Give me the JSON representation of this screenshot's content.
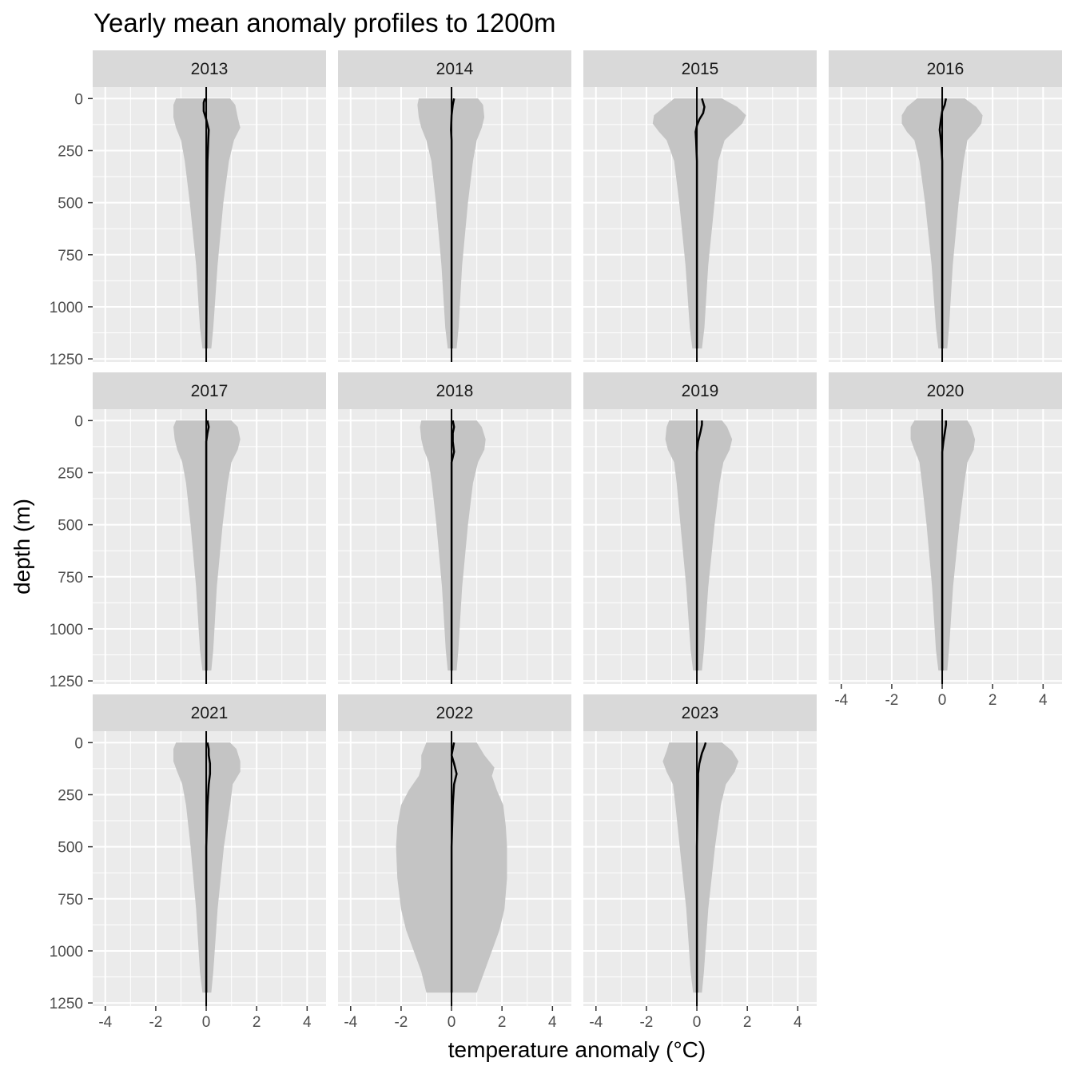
{
  "chart_data": {
    "type": "area",
    "title": "Yearly mean anomaly profiles to 1200m",
    "xlabel": "temperature anomaly (°C)",
    "ylabel": "depth (m)",
    "xlim": [
      -4.5,
      4.75
    ],
    "ylim": [
      1265,
      -55
    ],
    "x_ticks": [
      -4,
      -2,
      0,
      2,
      4
    ],
    "y_ticks": [
      0,
      250,
      500,
      750,
      1000,
      1250
    ],
    "y_reversed": true,
    "grid": true,
    "facet_layout": "4 columns, 3 rows; x-axis labels under the bottom panel of each column",
    "reference_line_x": 0,
    "colors": {
      "panel_background": "#ebebeb",
      "grid": "#ffffff",
      "strip_background": "#d9d9d9",
      "envelope_fill": "#c4c4c4",
      "mean_line": "#000000"
    },
    "facets": [
      {
        "label": "2013",
        "envelope": {
          "depth": [
            0,
            30,
            90,
            140,
            200,
            300,
            500,
            800,
            1100,
            1200
          ],
          "low": [
            -1.2,
            -1.3,
            -1.3,
            -1.2,
            -1.0,
            -0.85,
            -0.65,
            -0.4,
            -0.25,
            -0.15
          ],
          "high": [
            0.95,
            1.15,
            1.25,
            1.35,
            1.1,
            0.9,
            0.68,
            0.45,
            0.28,
            0.2
          ]
        },
        "mean": {
          "depth": [
            0,
            20,
            60,
            100,
            150,
            200,
            300,
            500,
            800,
            1200
          ],
          "value": [
            -0.05,
            -0.1,
            -0.1,
            0.0,
            0.1,
            0.08,
            0.05,
            0.03,
            0.02,
            0.0
          ]
        }
      },
      {
        "label": "2014",
        "envelope": {
          "depth": [
            0,
            30,
            90,
            140,
            200,
            300,
            500,
            800,
            1100,
            1200
          ],
          "low": [
            -1.3,
            -1.35,
            -1.3,
            -1.2,
            -1.0,
            -0.8,
            -0.62,
            -0.4,
            -0.25,
            -0.15
          ],
          "high": [
            1.05,
            1.25,
            1.3,
            1.2,
            1.0,
            0.85,
            0.65,
            0.42,
            0.28,
            0.2
          ]
        },
        "mean": {
          "depth": [
            0,
            30,
            80,
            150,
            200,
            300,
            500,
            800,
            1200
          ],
          "value": [
            0.1,
            0.05,
            0.0,
            -0.02,
            0.0,
            0.0,
            0.0,
            0.0,
            0.0
          ]
        }
      },
      {
        "label": "2015",
        "envelope": {
          "depth": [
            0,
            40,
            80,
            120,
            160,
            200,
            300,
            500,
            800,
            1100,
            1200
          ],
          "low": [
            -0.9,
            -1.3,
            -1.7,
            -1.75,
            -1.5,
            -1.2,
            -0.9,
            -0.7,
            -0.45,
            -0.28,
            -0.18
          ],
          "high": [
            1.0,
            1.6,
            1.95,
            1.8,
            1.45,
            1.1,
            0.85,
            0.7,
            0.45,
            0.3,
            0.2
          ]
        },
        "mean": {
          "depth": [
            0,
            20,
            40,
            70,
            100,
            130,
            160,
            200,
            300,
            500,
            800,
            1200
          ],
          "value": [
            0.2,
            0.25,
            0.3,
            0.25,
            0.1,
            0.0,
            -0.05,
            -0.03,
            0.0,
            0.0,
            0.0,
            0.0
          ]
        }
      },
      {
        "label": "2016",
        "envelope": {
          "depth": [
            0,
            40,
            80,
            120,
            160,
            200,
            300,
            500,
            800,
            1100,
            1200
          ],
          "low": [
            -1.0,
            -1.4,
            -1.6,
            -1.6,
            -1.4,
            -1.1,
            -0.9,
            -0.68,
            -0.42,
            -0.25,
            -0.15
          ],
          "high": [
            0.9,
            1.35,
            1.6,
            1.55,
            1.3,
            1.0,
            0.85,
            0.65,
            0.42,
            0.27,
            0.2
          ]
        },
        "mean": {
          "depth": [
            0,
            30,
            60,
            100,
            150,
            200,
            300,
            500,
            800,
            1200
          ],
          "value": [
            0.15,
            0.1,
            0.0,
            -0.05,
            -0.1,
            -0.05,
            0.0,
            0.0,
            0.0,
            0.0
          ]
        }
      },
      {
        "label": "2017",
        "envelope": {
          "depth": [
            0,
            30,
            90,
            140,
            200,
            300,
            500,
            800,
            1100,
            1200
          ],
          "low": [
            -1.2,
            -1.3,
            -1.25,
            -1.15,
            -0.95,
            -0.8,
            -0.62,
            -0.4,
            -0.25,
            -0.15
          ],
          "high": [
            1.0,
            1.25,
            1.35,
            1.25,
            1.0,
            0.85,
            0.65,
            0.42,
            0.28,
            0.2
          ]
        },
        "mean": {
          "depth": [
            0,
            30,
            60,
            100,
            150,
            200,
            300,
            500,
            800,
            1200
          ],
          "value": [
            0.05,
            0.1,
            0.05,
            0.0,
            0.0,
            0.0,
            0.0,
            0.0,
            0.0,
            0.0
          ]
        }
      },
      {
        "label": "2018",
        "envelope": {
          "depth": [
            0,
            30,
            90,
            140,
            200,
            300,
            500,
            800,
            1100,
            1200
          ],
          "low": [
            -1.2,
            -1.25,
            -1.2,
            -1.1,
            -0.9,
            -0.78,
            -0.6,
            -0.38,
            -0.23,
            -0.15
          ],
          "high": [
            1.0,
            1.2,
            1.35,
            1.3,
            1.05,
            0.85,
            0.65,
            0.42,
            0.27,
            0.2
          ]
        },
        "mean": {
          "depth": [
            0,
            30,
            60,
            100,
            150,
            200,
            300,
            500,
            800,
            1200
          ],
          "value": [
            0.05,
            0.1,
            0.05,
            0.05,
            0.1,
            0.0,
            0.0,
            0.0,
            0.0,
            0.0
          ]
        }
      },
      {
        "label": "2019",
        "envelope": {
          "depth": [
            0,
            30,
            90,
            140,
            200,
            300,
            500,
            800,
            1100,
            1200
          ],
          "low": [
            -1.1,
            -1.2,
            -1.25,
            -1.15,
            -0.9,
            -0.8,
            -0.65,
            -0.42,
            -0.25,
            -0.15
          ],
          "high": [
            1.0,
            1.2,
            1.4,
            1.3,
            1.05,
            0.9,
            0.7,
            0.45,
            0.28,
            0.2
          ]
        },
        "mean": {
          "depth": [
            0,
            20,
            50,
            100,
            150,
            200,
            300,
            500,
            800,
            1200
          ],
          "value": [
            0.2,
            0.2,
            0.15,
            0.05,
            0.0,
            0.0,
            0.0,
            0.0,
            0.0,
            0.0
          ]
        }
      },
      {
        "label": "2020",
        "envelope": {
          "depth": [
            0,
            30,
            90,
            140,
            200,
            300,
            500,
            800,
            1100,
            1200
          ],
          "low": [
            -1.1,
            -1.25,
            -1.25,
            -1.1,
            -0.9,
            -0.8,
            -0.62,
            -0.4,
            -0.25,
            -0.15
          ],
          "high": [
            1.0,
            1.15,
            1.3,
            1.25,
            1.0,
            0.88,
            0.68,
            0.43,
            0.27,
            0.2
          ]
        },
        "mean": {
          "depth": [
            0,
            20,
            60,
            100,
            150,
            200,
            300,
            500,
            800,
            1200
          ],
          "value": [
            0.15,
            0.15,
            0.1,
            0.05,
            0.0,
            0.0,
            0.0,
            0.0,
            0.0,
            0.0
          ]
        }
      },
      {
        "label": "2021",
        "envelope": {
          "depth": [
            0,
            30,
            90,
            140,
            200,
            300,
            500,
            800,
            1100,
            1200
          ],
          "low": [
            -1.2,
            -1.3,
            -1.3,
            -1.15,
            -0.95,
            -0.8,
            -0.62,
            -0.4,
            -0.25,
            -0.15
          ],
          "high": [
            0.95,
            1.2,
            1.35,
            1.35,
            1.05,
            0.95,
            0.7,
            0.45,
            0.28,
            0.2
          ]
        },
        "mean": {
          "depth": [
            0,
            30,
            60,
            100,
            150,
            200,
            300,
            500,
            800,
            1200
          ],
          "value": [
            0.05,
            0.1,
            0.1,
            0.15,
            0.15,
            0.1,
            0.05,
            0.0,
            0.0,
            0.0
          ]
        }
      },
      {
        "label": "2022",
        "envelope": {
          "depth": [
            0,
            60,
            120,
            160,
            230,
            300,
            400,
            500,
            650,
            800,
            900,
            1000,
            1100,
            1200
          ],
          "low": [
            -1.0,
            -1.2,
            -1.2,
            -1.3,
            -1.7,
            -2.0,
            -2.15,
            -2.2,
            -2.15,
            -2.0,
            -1.8,
            -1.5,
            -1.2,
            -1.0
          ],
          "high": [
            1.0,
            1.3,
            1.7,
            1.6,
            1.8,
            2.05,
            2.15,
            2.2,
            2.2,
            2.1,
            1.9,
            1.6,
            1.3,
            1.0
          ]
        },
        "mean": {
          "depth": [
            0,
            30,
            60,
            100,
            150,
            200,
            300,
            500,
            800,
            1200
          ],
          "value": [
            0.1,
            0.05,
            0.0,
            0.1,
            0.2,
            0.1,
            0.05,
            0.0,
            0.0,
            0.0
          ]
        }
      },
      {
        "label": "2023",
        "envelope": {
          "depth": [
            0,
            40,
            90,
            140,
            200,
            300,
            500,
            800,
            1100,
            1200
          ],
          "low": [
            -1.1,
            -1.2,
            -1.35,
            -1.2,
            -0.95,
            -0.85,
            -0.68,
            -0.42,
            -0.25,
            -0.15
          ],
          "high": [
            1.0,
            1.4,
            1.65,
            1.5,
            1.15,
            0.95,
            0.72,
            0.45,
            0.28,
            0.2
          ]
        },
        "mean": {
          "depth": [
            0,
            20,
            50,
            100,
            150,
            200,
            300,
            500,
            800,
            1200
          ],
          "value": [
            0.35,
            0.3,
            0.2,
            0.1,
            0.05,
            0.05,
            0.03,
            0.0,
            0.0,
            0.0
          ]
        }
      }
    ]
  }
}
